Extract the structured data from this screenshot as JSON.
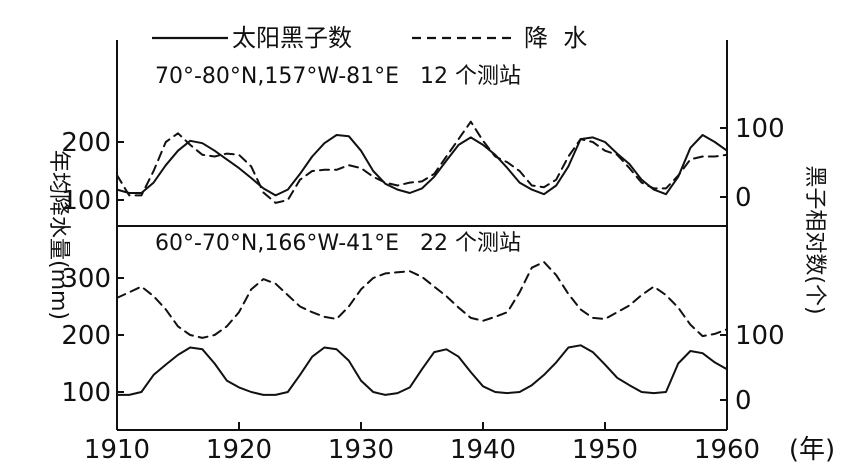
{
  "legend": {
    "sunspot_label": "太阳黑子数",
    "precip_label": "降  水"
  },
  "colors": {
    "ink": "#111111",
    "background": "#ffffff"
  },
  "chart_data": {
    "type": "line",
    "x_label": "(年)",
    "x_range": [
      1910,
      1960
    ],
    "x_ticks": [
      1910,
      1920,
      1930,
      1940,
      1950,
      1960
    ],
    "left_axis_label": "年均降水量(mm)",
    "right_axis_label": "黑子相对数(个)",
    "panels": [
      {
        "id": "top",
        "title": "70°-80°N,157°W-81°E   12 个测站",
        "left_ticks": [
          100,
          200
        ],
        "right_ticks": [
          0,
          100
        ],
        "series": [
          {
            "name": "太阳黑子数",
            "style": "solid",
            "axis": "left",
            "points": [
              [
                1910,
                118
              ],
              [
                1911,
                112
              ],
              [
                1912,
                112
              ],
              [
                1913,
                130
              ],
              [
                1914,
                160
              ],
              [
                1915,
                185
              ],
              [
                1916,
                202
              ],
              [
                1917,
                198
              ],
              [
                1918,
                185
              ],
              [
                1919,
                170
              ],
              [
                1920,
                155
              ],
              [
                1921,
                138
              ],
              [
                1922,
                120
              ],
              [
                1923,
                108
              ],
              [
                1924,
                118
              ],
              [
                1925,
                145
              ],
              [
                1926,
                175
              ],
              [
                1927,
                198
              ],
              [
                1928,
                212
              ],
              [
                1929,
                210
              ],
              [
                1930,
                185
              ],
              [
                1931,
                150
              ],
              [
                1932,
                128
              ],
              [
                1933,
                118
              ],
              [
                1934,
                112
              ],
              [
                1935,
                120
              ],
              [
                1936,
                140
              ],
              [
                1937,
                168
              ],
              [
                1938,
                195
              ],
              [
                1939,
                208
              ],
              [
                1940,
                195
              ],
              [
                1941,
                178
              ],
              [
                1942,
                155
              ],
              [
                1943,
                130
              ],
              [
                1944,
                118
              ],
              [
                1945,
                110
              ],
              [
                1946,
                125
              ],
              [
                1947,
                158
              ],
              [
                1948,
                205
              ],
              [
                1949,
                208
              ],
              [
                1950,
                200
              ],
              [
                1951,
                180
              ],
              [
                1952,
                162
              ],
              [
                1953,
                135
              ],
              [
                1954,
                118
              ],
              [
                1955,
                110
              ],
              [
                1956,
                140
              ],
              [
                1957,
                190
              ],
              [
                1958,
                212
              ],
              [
                1959,
                200
              ],
              [
                1960,
                185
              ]
            ]
          },
          {
            "name": "降  水",
            "style": "dashed",
            "axis": "left",
            "points": [
              [
                1910,
                143
              ],
              [
                1911,
                108
              ],
              [
                1912,
                108
              ],
              [
                1913,
                150
              ],
              [
                1914,
                200
              ],
              [
                1915,
                215
              ],
              [
                1916,
                195
              ],
              [
                1917,
                178
              ],
              [
                1918,
                175
              ],
              [
                1919,
                180
              ],
              [
                1920,
                178
              ],
              [
                1921,
                158
              ],
              [
                1922,
                113
              ],
              [
                1923,
                95
              ],
              [
                1924,
                100
              ],
              [
                1925,
                135
              ],
              [
                1926,
                150
              ],
              [
                1927,
                152
              ],
              [
                1928,
                152
              ],
              [
                1929,
                160
              ],
              [
                1930,
                155
              ],
              [
                1931,
                140
              ],
              [
                1932,
                130
              ],
              [
                1933,
                125
              ],
              [
                1934,
                130
              ],
              [
                1935,
                132
              ],
              [
                1936,
                145
              ],
              [
                1937,
                175
              ],
              [
                1938,
                205
              ],
              [
                1939,
                235
              ],
              [
                1940,
                202
              ],
              [
                1941,
                175
              ],
              [
                1942,
                165
              ],
              [
                1943,
                150
              ],
              [
                1944,
                125
              ],
              [
                1945,
                122
              ],
              [
                1946,
                135
              ],
              [
                1947,
                175
              ],
              [
                1948,
                205
              ],
              [
                1949,
                200
              ],
              [
                1950,
                185
              ],
              [
                1951,
                178
              ],
              [
                1952,
                155
              ],
              [
                1953,
                130
              ],
              [
                1954,
                120
              ],
              [
                1955,
                120
              ],
              [
                1956,
                142
              ],
              [
                1957,
                170
              ],
              [
                1958,
                175
              ],
              [
                1959,
                175
              ],
              [
                1960,
                178
              ]
            ]
          }
        ]
      },
      {
        "id": "bottom",
        "title": "60°-70°N,166°W-41°E   22 个测站",
        "left_ticks": [
          100,
          200,
          300
        ],
        "right_ticks": [
          0,
          100
        ],
        "series": [
          {
            "name": "降  水",
            "style": "dashed",
            "axis": "left",
            "points": [
              [
                1910,
                265
              ],
              [
                1911,
                275
              ],
              [
                1912,
                285
              ],
              [
                1913,
                268
              ],
              [
                1914,
                245
              ],
              [
                1915,
                215
              ],
              [
                1916,
                200
              ],
              [
                1917,
                195
              ],
              [
                1918,
                200
              ],
              [
                1919,
                215
              ],
              [
                1920,
                240
              ],
              [
                1921,
                280
              ],
              [
                1922,
                298
              ],
              [
                1923,
                290
              ],
              [
                1924,
                270
              ],
              [
                1925,
                250
              ],
              [
                1926,
                240
              ],
              [
                1927,
                232
              ],
              [
                1928,
                228
              ],
              [
                1929,
                250
              ],
              [
                1930,
                280
              ],
              [
                1931,
                300
              ],
              [
                1932,
                308
              ],
              [
                1933,
                310
              ],
              [
                1934,
                312
              ],
              [
                1935,
                302
              ],
              [
                1936,
                285
              ],
              [
                1937,
                268
              ],
              [
                1938,
                248
              ],
              [
                1939,
                230
              ],
              [
                1940,
                225
              ],
              [
                1941,
                232
              ],
              [
                1942,
                240
              ],
              [
                1943,
                275
              ],
              [
                1944,
                318
              ],
              [
                1945,
                328
              ],
              [
                1946,
                305
              ],
              [
                1947,
                272
              ],
              [
                1948,
                245
              ],
              [
                1949,
                230
              ],
              [
                1950,
                228
              ],
              [
                1951,
                240
              ],
              [
                1952,
                252
              ],
              [
                1953,
                270
              ],
              [
                1954,
                285
              ],
              [
                1955,
                270
              ],
              [
                1956,
                248
              ],
              [
                1957,
                218
              ],
              [
                1958,
                198
              ],
              [
                1959,
                202
              ],
              [
                1960,
                210
              ]
            ]
          },
          {
            "name": "太阳黑子数",
            "style": "solid",
            "axis": "left",
            "points": [
              [
                1910,
                95
              ],
              [
                1911,
                95
              ],
              [
                1912,
                100
              ],
              [
                1913,
                130
              ],
              [
                1914,
                148
              ],
              [
                1915,
                165
              ],
              [
                1916,
                178
              ],
              [
                1917,
                175
              ],
              [
                1918,
                150
              ],
              [
                1919,
                120
              ],
              [
                1920,
                108
              ],
              [
                1921,
                100
              ],
              [
                1922,
                95
              ],
              [
                1923,
                95
              ],
              [
                1924,
                100
              ],
              [
                1925,
                130
              ],
              [
                1926,
                162
              ],
              [
                1927,
                178
              ],
              [
                1928,
                175
              ],
              [
                1929,
                155
              ],
              [
                1930,
                120
              ],
              [
                1931,
                100
              ],
              [
                1932,
                95
              ],
              [
                1933,
                98
              ],
              [
                1934,
                108
              ],
              [
                1935,
                140
              ],
              [
                1936,
                170
              ],
              [
                1937,
                175
              ],
              [
                1938,
                162
              ],
              [
                1939,
                135
              ],
              [
                1940,
                110
              ],
              [
                1941,
                100
              ],
              [
                1942,
                98
              ],
              [
                1943,
                100
              ],
              [
                1944,
                112
              ],
              [
                1945,
                130
              ],
              [
                1946,
                152
              ],
              [
                1947,
                178
              ],
              [
                1948,
                182
              ],
              [
                1949,
                170
              ],
              [
                1950,
                148
              ],
              [
                1951,
                125
              ],
              [
                1952,
                112
              ],
              [
                1953,
                100
              ],
              [
                1954,
                98
              ],
              [
                1955,
                100
              ],
              [
                1956,
                150
              ],
              [
                1957,
                172
              ],
              [
                1958,
                168
              ],
              [
                1959,
                152
              ],
              [
                1960,
                140
              ]
            ]
          }
        ]
      }
    ]
  }
}
